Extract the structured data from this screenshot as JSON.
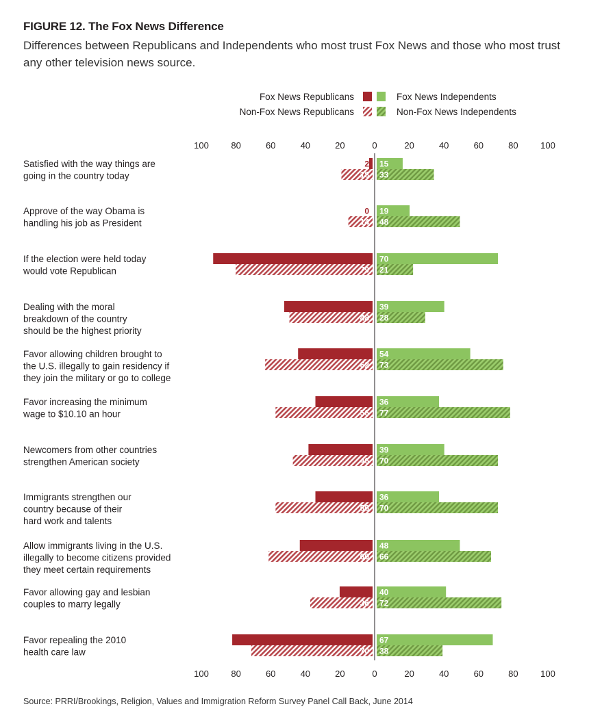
{
  "figure": {
    "label": "FIGURE 12. The Fox News Difference",
    "subtitle": "Differences between Republicans and Independents who most trust Fox News and those who most trust any other television news source.",
    "source": "Source: PRRI/Brookings, Religion, Values and Immigration Reform Survey Panel Call Back, June 2014"
  },
  "colors": {
    "republican": "#a4262c",
    "independent": "#8cc460",
    "text": "#231f20"
  },
  "chart_data": {
    "type": "bar",
    "orientation": "horizontal-diverging",
    "title": "FIGURE 12. The Fox News Difference",
    "subtitle": "Differences between Republicans and Independents who most trust Fox News and those who most trust any other television news source.",
    "xlim": [
      -100,
      100
    ],
    "ticks": [
      "100",
      "80",
      "60",
      "40",
      "20",
      "0",
      "20",
      "40",
      "60",
      "80",
      "100"
    ],
    "legend_position": "top-right",
    "grid": false,
    "categories": [
      [
        "Satisfied with the way things are",
        "going in the country today"
      ],
      [
        "Approve of the way Obama is",
        "handling his job as President"
      ],
      [
        "If the election were held today",
        "would vote Republican"
      ],
      [
        "Dealing with the moral",
        "breakdown of the country",
        "should be the highest priority"
      ],
      [
        "Favor allowing children brought to",
        "the U.S. illegally to gain residency if",
        "they join the military or go to college"
      ],
      [
        "Favor increasing the minimum",
        "wage to $10.10 an hour"
      ],
      [
        "Newcomers from other countries",
        "strengthen American society"
      ],
      [
        "Immigrants strengthen our",
        "country because of their",
        "hard work and talents"
      ],
      [
        "Allow immigrants living in the U.S.",
        "illegally to become citizens provided",
        "they meet certain requirements"
      ],
      [
        "Favor allowing gay and lesbian",
        "couples to marry legally"
      ],
      [
        "Favor repealing the 2010",
        "health care law"
      ]
    ],
    "series": [
      {
        "name": "Fox News Republicans",
        "side": "left",
        "pattern": "solid",
        "values": [
          2,
          0,
          92,
          51,
          43,
          33,
          37,
          33,
          42,
          19,
          81
        ]
      },
      {
        "name": "Non-Fox News Republicans",
        "side": "left",
        "pattern": "hatched",
        "values": [
          18,
          14,
          79,
          48,
          62,
          56,
          46,
          56,
          60,
          36,
          70
        ]
      },
      {
        "name": "Fox News Independents",
        "side": "right",
        "pattern": "solid",
        "values": [
          15,
          19,
          70,
          39,
          54,
          36,
          39,
          36,
          48,
          40,
          67
        ]
      },
      {
        "name": "Non-Fox News Independents",
        "side": "right",
        "pattern": "hatched",
        "values": [
          33,
          48,
          21,
          28,
          73,
          77,
          70,
          70,
          66,
          72,
          38
        ]
      }
    ]
  }
}
